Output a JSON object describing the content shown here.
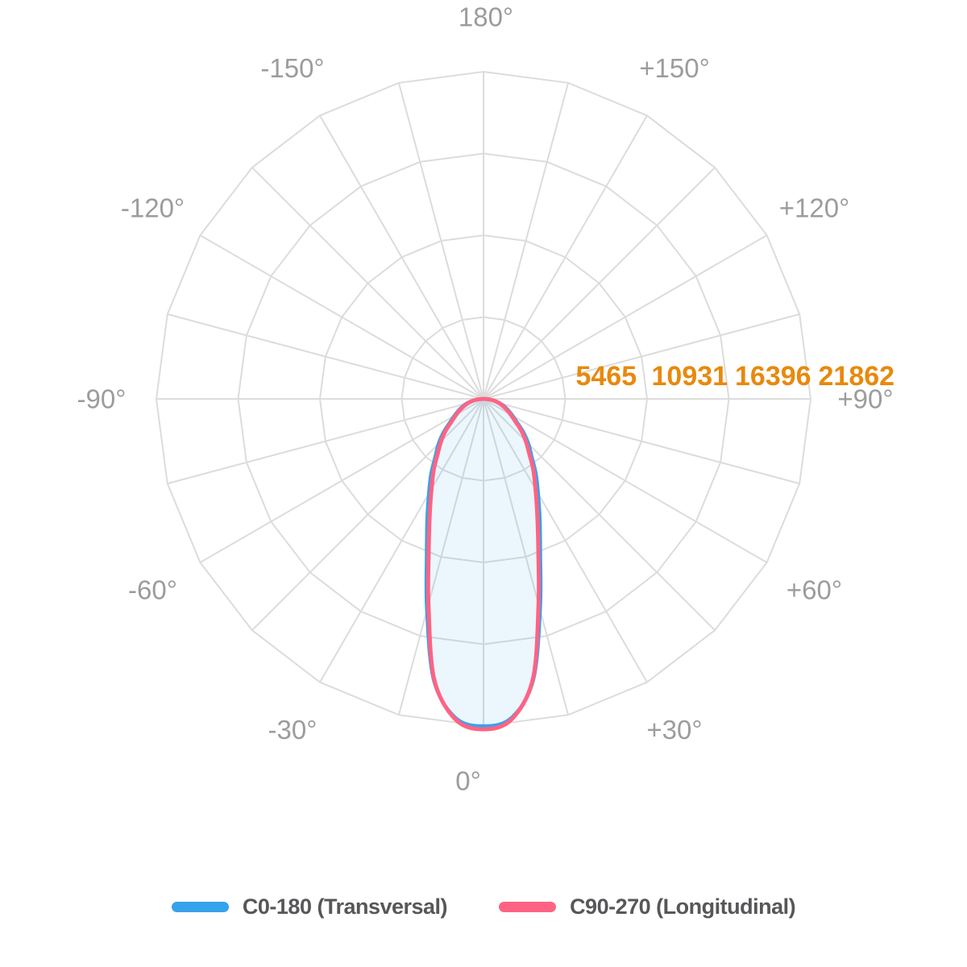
{
  "page": {
    "background": "#ffffff"
  },
  "legend": {
    "items": [
      {
        "label": "C0-180 (Transversal)",
        "color": "#36a2eb"
      },
      {
        "label": "C90-270 (Longitudinal)",
        "color": "#ff6384"
      }
    ]
  },
  "chart_data": {
    "type": "line",
    "variant": "polar_photometric_distribution",
    "title": "",
    "legend_position": "bottom",
    "grid": {
      "shape": "polygon",
      "rings": 4,
      "spoke_step_deg": 15,
      "angle_label_step_deg": 30,
      "color": "#dcdcdc"
    },
    "scale_max": 21862,
    "radial_ticks": [
      "5465",
      "10931",
      "16396",
      "21862"
    ],
    "radial_tick_values": [
      5465,
      10931,
      16396,
      21862
    ],
    "radial_tick_color": "#e8890d",
    "angle_label_color": "#9c9c9c",
    "angle_labels": [
      {
        "angle_deg": 0,
        "label": "0°",
        "dx": -19
      },
      {
        "angle_deg": 30,
        "label": "+30°",
        "dx": 0
      },
      {
        "angle_deg": 60,
        "label": "+60°",
        "dx": 0
      },
      {
        "angle_deg": 90,
        "label": "+90°",
        "dx": 0
      },
      {
        "angle_deg": 120,
        "label": "+120°",
        "dx": 0
      },
      {
        "angle_deg": 150,
        "label": "+150°",
        "dx": 0
      },
      {
        "angle_deg": 180,
        "label": "180°",
        "dx": 3
      },
      {
        "angle_deg": -150,
        "label": "-150°",
        "dx": 0
      },
      {
        "angle_deg": -120,
        "label": "-120°",
        "dx": 0
      },
      {
        "angle_deg": -90,
        "label": "-90°",
        "dx": 0
      },
      {
        "angle_deg": -60,
        "label": "-60°",
        "dx": 0
      },
      {
        "angle_deg": -30,
        "label": "-30°",
        "dx": 0
      }
    ],
    "series": [
      {
        "name": "C0-180 (Transversal)",
        "color": "#36a2eb",
        "fill": "rgba(54,162,235,0.10)",
        "stroke_width": 4.5,
        "symmetric": true,
        "angles_deg": [
          0,
          5,
          10,
          15,
          20,
          25,
          30,
          35,
          40,
          45,
          50,
          55,
          60,
          65,
          70,
          75,
          80,
          85,
          90
        ],
        "values": [
          21862,
          21400,
          19100,
          14600,
          11100,
          8900,
          7300,
          6100,
          5000,
          4250,
          3500,
          2750,
          2250,
          1850,
          1500,
          1150,
          800,
          420,
          80
        ]
      },
      {
        "name": "C90-270 (Longitudinal)",
        "color": "#ff6384",
        "fill": "none",
        "stroke_width": 5,
        "symmetric": true,
        "angles_deg": [
          0,
          5,
          10,
          15,
          20,
          25,
          30,
          35,
          40,
          45,
          50,
          55,
          60,
          65,
          70,
          75,
          80,
          85,
          90
        ],
        "values": [
          22080,
          21500,
          19000,
          14200,
          10700,
          8500,
          6950,
          5800,
          4750,
          4000,
          3300,
          2580,
          2100,
          1720,
          1380,
          1050,
          720,
          370,
          60
        ]
      }
    ]
  }
}
